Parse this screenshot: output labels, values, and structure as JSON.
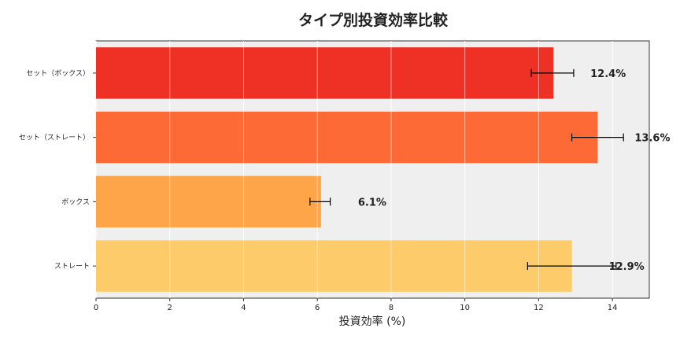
{
  "chart_data": {
    "type": "bar",
    "orientation": "horizontal",
    "title": "タイプ別投資効率比較",
    "xlabel": "投資効率 (%)",
    "ylabel": "",
    "xlim": [
      0,
      15
    ],
    "x_ticks": [
      0,
      2,
      4,
      6,
      8,
      10,
      12,
      14
    ],
    "grid": true,
    "categories": [
      "セット（ボックス）",
      "セット（ストレート）",
      "ボックス",
      "ストレート"
    ],
    "values": [
      12.4,
      13.6,
      6.1,
      12.9
    ],
    "error_low": [
      11.8,
      12.9,
      5.8,
      11.7
    ],
    "error_high": [
      12.95,
      14.3,
      6.35,
      14.1
    ],
    "data_labels": [
      "12.4%",
      "13.6%",
      "6.1%",
      "12.9%"
    ],
    "colors": [
      "#ee3124",
      "#fd6a35",
      "#fea54a",
      "#fecb6a"
    ],
    "plot_background": "#efefef"
  }
}
